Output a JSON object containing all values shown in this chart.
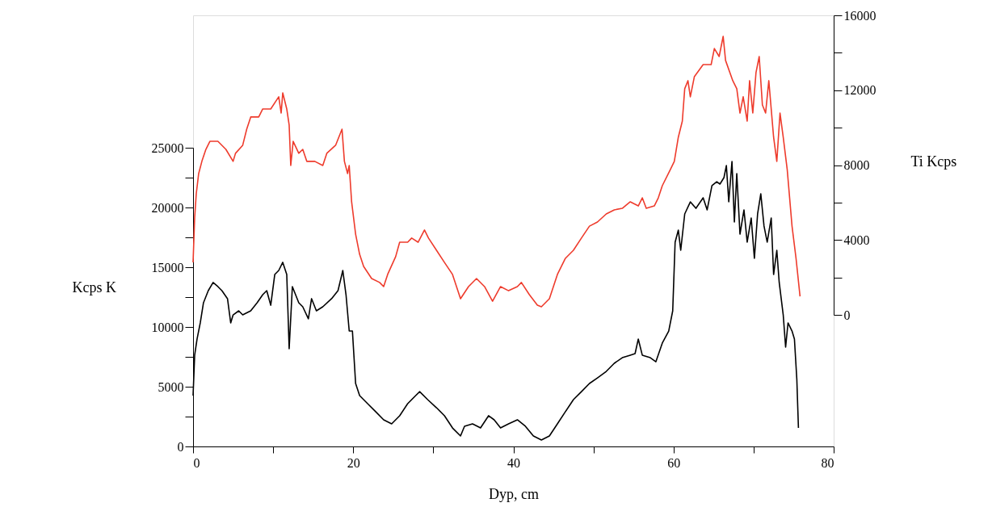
{
  "chart_data": {
    "type": "line",
    "xlabel": "Dyp, cm",
    "ylabel": "Kcps K",
    "y2label": "Ti Kcps",
    "xlim": [
      0,
      80
    ],
    "xticks": [
      0,
      {
        "value": 10,
        "label": null
      },
      20,
      {
        "value": 30,
        "label": null
      },
      40,
      {
        "value": 50,
        "label": null
      },
      60,
      {
        "value": 70,
        "label": null
      },
      80
    ],
    "ylim": [
      0,
      25000
    ],
    "yticks": [
      0,
      {
        "value": 2500,
        "label": null
      },
      5000,
      {
        "value": 7500,
        "label": null
      },
      10000,
      {
        "value": 12500,
        "label": null
      },
      15000,
      {
        "value": 17500,
        "label": null
      },
      20000,
      {
        "value": 22500,
        "label": null
      },
      25000
    ],
    "y2lim": [
      0,
      16000
    ],
    "y2ticks": [
      0,
      {
        "value": 2000,
        "label": null
      },
      4000,
      {
        "value": 6000,
        "label": null
      },
      8000,
      {
        "value": 10000,
        "label": null
      },
      12000,
      {
        "value": 14000,
        "label": null
      },
      16000
    ],
    "grid": false,
    "marker": "none",
    "line_style": "solid",
    "series": [
      {
        "color": "#000000",
        "x": [
          0,
          0.2,
          0.5,
          0.9,
          1.3,
          1.9,
          2.5,
          3.1,
          3.6,
          4.3,
          4.7,
          5.0,
          5.7,
          6.2,
          7.2,
          8.0,
          8.7,
          9.2,
          9.7,
          10.2,
          10.7,
          11.2,
          11.7,
          12.0,
          12.4,
          13.2,
          13.7,
          14.4,
          14.8,
          15.4,
          16.2,
          17.3,
          18.1,
          18.7,
          19.1,
          19.5,
          19.9,
          20.3,
          20.8,
          21.8,
          22.8,
          23.8,
          24.8,
          25.8,
          26.8,
          27.8,
          28.3,
          29.3,
          30.4,
          31.4,
          32.4,
          33.4,
          33.9,
          34.9,
          35.9,
          36.9,
          37.6,
          38.4,
          39.4,
          40.5,
          41.5,
          42.5,
          43.5,
          44.5,
          45.5,
          46.5,
          47.5,
          48.5,
          49.5,
          50.5,
          51.6,
          52.6,
          53.6,
          54.6,
          55.2,
          55.6,
          56.1,
          57.1,
          57.8,
          58.6,
          59.4,
          59.9,
          60.2,
          60.6,
          60.9,
          61.4,
          62.1,
          62.8,
          63.7,
          64.2,
          64.8,
          65.4,
          65.8,
          66.3,
          66.6,
          66.9,
          67.3,
          67.6,
          67.9,
          68.3,
          68.8,
          69.2,
          69.7,
          70.1,
          70.5,
          70.9,
          71.3,
          71.7,
          72.2,
          72.5,
          72.9,
          73.2,
          73.7,
          74.0,
          74.3,
          74.8,
          75.1,
          75.4,
          75.6
        ],
        "values": [
          4260,
          7640,
          8990,
          10340,
          12030,
          13040,
          13720,
          13380,
          13040,
          12370,
          10340,
          11010,
          11350,
          11010,
          11350,
          12030,
          12700,
          13040,
          11820,
          14390,
          14730,
          15410,
          14390,
          8180,
          13380,
          12030,
          11690,
          10680,
          12370,
          11350,
          11690,
          12370,
          13040,
          14730,
          12700,
          9660,
          9660,
          5270,
          4260,
          3580,
          2910,
          2230,
          1890,
          2570,
          3580,
          4260,
          4590,
          3920,
          3240,
          2570,
          1550,
          880,
          1690,
          1890,
          1550,
          2570,
          2230,
          1550,
          1890,
          2230,
          1690,
          880,
          540,
          880,
          1890,
          2910,
          3920,
          4590,
          5270,
          5740,
          6280,
          6960,
          7430,
          7640,
          7770,
          8990,
          7640,
          7430,
          7090,
          8650,
          9660,
          11350,
          17100,
          18110,
          16420,
          19460,
          20470,
          19930,
          20810,
          19800,
          21830,
          22160,
          21960,
          22500,
          23510,
          20470,
          23850,
          18780,
          22840,
          17770,
          19800,
          17100,
          19120,
          15740,
          19460,
          21150,
          18450,
          17100,
          19120,
          14390,
          16420,
          13720,
          11010,
          8310,
          10340,
          9660,
          8990,
          5610,
          1550
        ]
      },
      {
        "color": "#ee3b2c",
        "axis": "y2",
        "x": [
          0,
          0.2,
          0.4,
          0.7,
          1.1,
          1.6,
          2.1,
          3.1,
          4.1,
          5.0,
          5.3,
          6.2,
          6.7,
          7.2,
          8.2,
          8.7,
          9.7,
          10.7,
          11.0,
          11.2,
          11.7,
          12.0,
          12.2,
          12.5,
          13.2,
          13.7,
          14.2,
          15.2,
          16.2,
          16.7,
          17.8,
          18.6,
          18.9,
          19.3,
          19.5,
          19.8,
          20.3,
          20.8,
          21.3,
          22.3,
          23.3,
          23.8,
          24.3,
          25.3,
          25.8,
          26.8,
          27.3,
          28.1,
          28.9,
          29.4,
          30.4,
          31.4,
          32.4,
          33.4,
          34.4,
          35.4,
          36.4,
          37.4,
          38.4,
          39.4,
          40.5,
          41.0,
          42.0,
          43.0,
          43.5,
          44.5,
          45.5,
          46.5,
          47.5,
          48.5,
          49.5,
          50.5,
          51.6,
          52.6,
          53.6,
          54.6,
          55.6,
          56.1,
          56.6,
          57.6,
          58.1,
          58.6,
          59.6,
          60.1,
          60.6,
          61.1,
          61.4,
          61.8,
          62.1,
          62.6,
          63.7,
          64.7,
          65.1,
          65.7,
          66.2,
          66.5,
          67.4,
          67.9,
          68.3,
          68.7,
          69.2,
          69.5,
          69.9,
          70.3,
          70.7,
          71.1,
          71.5,
          71.9,
          72.5,
          72.9,
          73.3,
          73.7,
          74.2,
          74.8,
          75.3,
          75.8
        ],
        "values": [
          2800,
          5200,
          6470,
          7550,
          8200,
          8840,
          9270,
          9270,
          8840,
          8200,
          8630,
          9060,
          9920,
          10570,
          10570,
          11000,
          11000,
          11650,
          10780,
          11860,
          11000,
          10140,
          7980,
          9270,
          8630,
          8840,
          8200,
          8200,
          7980,
          8630,
          9060,
          9920,
          8200,
          7550,
          7980,
          6040,
          4310,
          3230,
          2590,
          1940,
          1730,
          1510,
          2160,
          3110,
          3880,
          3880,
          4100,
          3880,
          4530,
          4100,
          3450,
          2800,
          2160,
          860,
          1510,
          1940,
          1510,
          730,
          1510,
          1290,
          1510,
          1730,
          1080,
          520,
          430,
          860,
          2160,
          3020,
          3450,
          4100,
          4740,
          4960,
          5390,
          5610,
          5690,
          6040,
          5820,
          6250,
          5690,
          5820,
          6250,
          6900,
          7760,
          8200,
          9490,
          10350,
          12080,
          12510,
          11650,
          12720,
          13370,
          13370,
          14230,
          13800,
          14880,
          13590,
          12510,
          12080,
          10780,
          11650,
          10350,
          12510,
          10780,
          12940,
          13800,
          11210,
          10780,
          12510,
          9490,
          8200,
          10780,
          9490,
          7760,
          4740,
          3020,
          990
        ]
      }
    ]
  }
}
